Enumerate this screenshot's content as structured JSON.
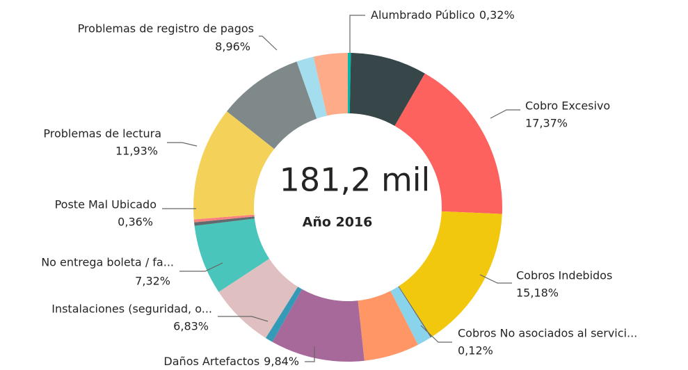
{
  "chart_data": {
    "type": "donut",
    "center_label": "181,2 mil",
    "subtitle": "Año 2016",
    "categories": [
      "Alumbrado Público",
      null,
      "Cobro Excesivo",
      "Cobros Indebidos",
      "Cobros No asociados al servici...",
      null,
      null,
      "Daños Artefactos",
      null,
      "Instalaciones (seguridad, o...",
      "No entrega boleta / fa...",
      "Poste Mal Ubicado",
      null,
      "Problemas de lectura",
      "Problemas de registro de pagos",
      null,
      null
    ],
    "values": [
      0.32,
      8.0,
      17.37,
      15.18,
      0.12,
      1.5,
      5.8,
      9.84,
      0.8,
      6.83,
      7.32,
      0.36,
      0.3,
      11.93,
      8.96,
      1.8,
      3.57
    ],
    "value_labels": [
      "0,32%",
      null,
      "17,37%",
      "15,18%",
      "0,12%",
      null,
      null,
      "9,84%",
      null,
      "6,83%",
      "7,32%",
      "0,36%",
      null,
      "11,93%",
      "8,96%",
      null,
      null
    ],
    "colors": [
      "#01b8aa",
      "#374649",
      "#fd625e",
      "#f2c80f",
      "#5f6b6d",
      "#8ad4eb",
      "#fe9666",
      "#a66999",
      "#3599b8",
      "#dfbfbf",
      "#4ac5bb",
      "#5f6b6d",
      "#fb8281",
      "#f4d25a",
      "#7f898a",
      "#a4ddee",
      "#fdab89"
    ]
  }
}
